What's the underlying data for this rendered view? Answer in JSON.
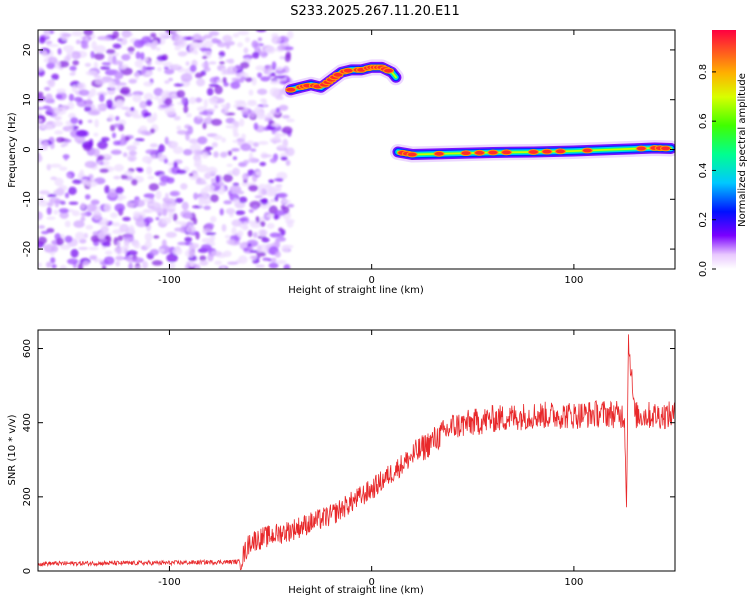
{
  "chart_data": [
    {
      "type": "heatmap",
      "title": "S233.2025.267.11.20.E11",
      "xlabel": "Height of straight line (km)",
      "ylabel": "Frequency (Hz)",
      "xlim": [
        -165,
        150
      ],
      "ylim": [
        -24,
        24
      ],
      "xticks": [
        -100,
        0,
        100
      ],
      "yticks": [
        -20,
        -10,
        0,
        10,
        20
      ],
      "colorbar": {
        "label": "Normalized spectral amplitude",
        "range": [
          0,
          0.97
        ],
        "ticks": [
          0.0,
          0.2,
          0.4,
          0.6,
          0.8
        ],
        "tick_labels": [
          "0.0",
          "0.2",
          "0.4",
          "0.6",
          "0.8"
        ]
      },
      "ridge_segments": [
        {
          "x": [
            -40,
            -35,
            -30,
            -25,
            -20,
            -15,
            -10,
            -5,
            0,
            5,
            10,
            12
          ],
          "y": [
            12,
            12.5,
            13,
            12.5,
            14,
            15.5,
            16,
            16,
            16.5,
            16.5,
            15.5,
            14.5
          ]
        },
        {
          "x": [
            13,
            20,
            40,
            60,
            80,
            100,
            120,
            140,
            148
          ],
          "y": [
            -0.5,
            -1,
            -0.8,
            -0.6,
            -0.5,
            -0.3,
            0,
            0.3,
            0.2
          ]
        }
      ],
      "noise_region": {
        "x_range": [
          -165,
          -40
        ],
        "y_range": [
          -24,
          24
        ]
      }
    },
    {
      "type": "line",
      "title": "",
      "xlabel": "Height of straight line (km)",
      "ylabel": "SNR (10 * v/v)",
      "xlim": [
        -165,
        150
      ],
      "ylim": [
        0,
        650
      ],
      "xticks": [
        -100,
        0,
        100
      ],
      "yticks": [
        0,
        200,
        400,
        600
      ],
      "series": [
        {
          "name": "SNR",
          "color": "#e8282a",
          "envelope_x": [
            -165,
            -100,
            -65,
            -60,
            -40,
            -20,
            0,
            20,
            40,
            60,
            80,
            100,
            115,
            125,
            126,
            127,
            130,
            150
          ],
          "envelope_y": [
            20,
            22,
            25,
            80,
            110,
            150,
            220,
            310,
            390,
            410,
            420,
            420,
            425,
            420,
            190,
            630,
            420,
            420
          ]
        }
      ]
    }
  ]
}
